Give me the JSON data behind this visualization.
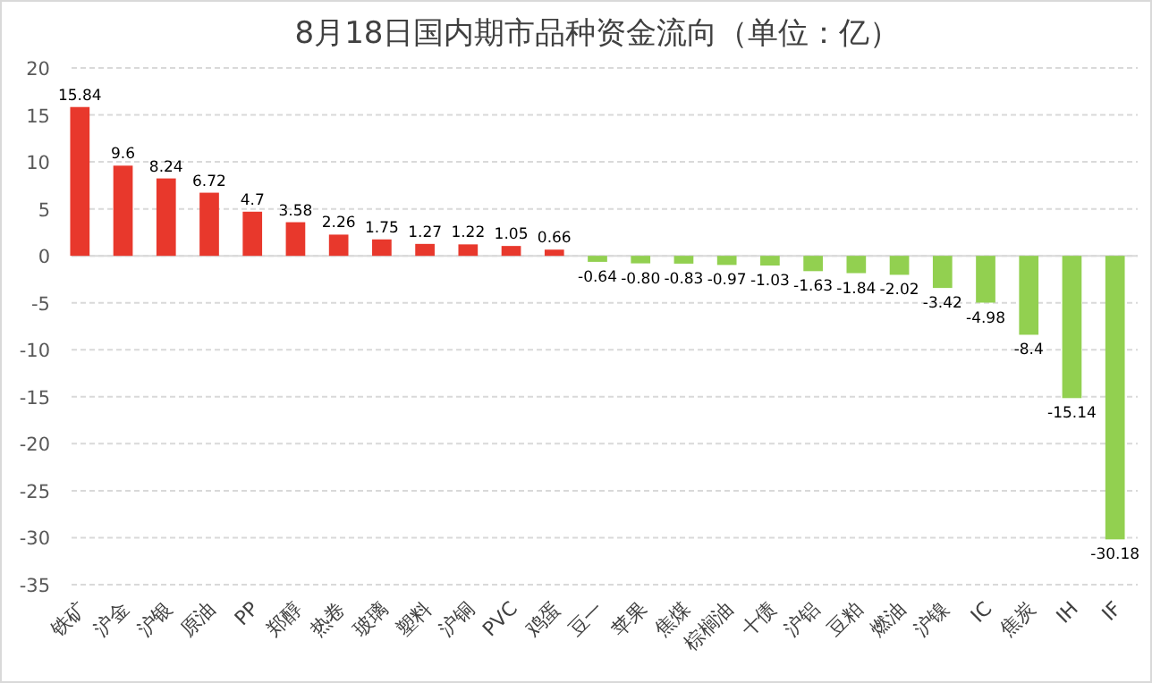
{
  "chart_data": {
    "type": "bar",
    "title": "8月18日国内期市品种资金流向（单位：亿）",
    "categories": [
      "铁矿",
      "沪金",
      "沪银",
      "原油",
      "PP",
      "郑醇",
      "热卷",
      "玻璃",
      "塑料",
      "沪铜",
      "PVC",
      "鸡蛋",
      "豆一",
      "苹果",
      "焦煤",
      "棕榈油",
      "十债",
      "沪铝",
      "豆粕",
      "燃油",
      "沪镍",
      "IC",
      "焦炭",
      "IH",
      "IF"
    ],
    "values": [
      15.84,
      9.6,
      8.24,
      6.72,
      4.7,
      3.58,
      2.26,
      1.75,
      1.27,
      1.22,
      1.05,
      0.66,
      -0.64,
      -0.8,
      -0.83,
      -0.97,
      -1.03,
      -1.63,
      -1.84,
      -2.02,
      -3.42,
      -4.98,
      -8.4,
      -15.14,
      -30.18
    ],
    "value_labels": [
      "15.84",
      "9.6",
      "8.24",
      "6.72",
      "4.7",
      "3.58",
      "2.26",
      "1.75",
      "1.27",
      "1.22",
      "1.05",
      "0.66",
      "-0.64",
      "-0.80",
      "-0.83",
      "-0.97",
      "-1.03",
      "-1.63",
      "-1.84",
      "-2.02",
      "-3.42",
      "-4.98",
      "-8.4",
      "-15.14",
      "-30.18"
    ],
    "colors": [
      "#e8382c",
      "#e8382c",
      "#e8382c",
      "#e8382c",
      "#e8382c",
      "#e8382c",
      "#e8382c",
      "#e8382c",
      "#e8382c",
      "#e8382c",
      "#e8382c",
      "#e8382c",
      "#92d050",
      "#92d050",
      "#92d050",
      "#92d050",
      "#92d050",
      "#92d050",
      "#92d050",
      "#92d050",
      "#92d050",
      "#92d050",
      "#92d050",
      "#92d050",
      "#92d050"
    ],
    "ylim": [
      -35,
      20
    ],
    "yticks": [
      -35,
      -30,
      -25,
      -20,
      -15,
      -10,
      -5,
      0,
      5,
      10,
      15,
      20
    ],
    "grid": "y"
  }
}
